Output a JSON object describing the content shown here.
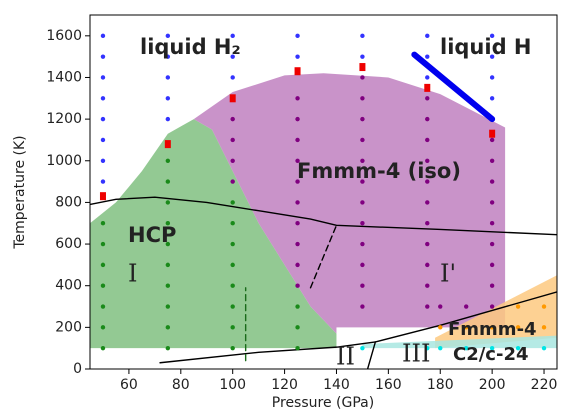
{
  "chart_data": {
    "type": "scatter",
    "xlabel": "Pressure (GPa)",
    "ylabel": "Temperature (K)",
    "xlim": [
      45,
      225
    ],
    "ylim": [
      0,
      1700
    ],
    "xticks": [
      60,
      80,
      100,
      120,
      140,
      160,
      180,
      200,
      220
    ],
    "yticks": [
      0,
      200,
      400,
      600,
      800,
      1000,
      1200,
      1400,
      1600
    ],
    "annotations": [
      "liquid H₂",
      "liquid H",
      "Fmmm-4 (iso)",
      "HCP",
      "I",
      "I'",
      "II",
      "III",
      "Fmmm-4",
      "C2/c-24"
    ],
    "regions": [
      {
        "color": "#80c080",
        "x": [
          45,
          45,
          55,
          65,
          75,
          85,
          92,
          100,
          110,
          120,
          130,
          140,
          140
        ],
        "y": [
          100,
          700,
          800,
          950,
          1130,
          1200,
          1150,
          950,
          700,
          500,
          300,
          170,
          100
        ]
      },
      {
        "color": "#bf80bf",
        "x": [
          85,
          100,
          120,
          135,
          160,
          180,
          205,
          205,
          140,
          140,
          130,
          120,
          110,
          100,
          92
        ],
        "y": [
          1200,
          1330,
          1410,
          1420,
          1400,
          1320,
          1160,
          200,
          200,
          170,
          300,
          500,
          700,
          950,
          1150
        ]
      },
      {
        "color": "#fdc980",
        "x": [
          178,
          225,
          225,
          178
        ],
        "y": [
          150,
          450,
          150,
          100
        ]
      },
      {
        "color": "#a8e6e0",
        "x": [
          150,
          225,
          225,
          150
        ],
        "y": [
          100,
          100,
          160,
          120
        ]
      }
    ],
    "lines": [
      {
        "color": "#000000",
        "x": [
          45,
          55,
          70,
          90,
          110,
          130,
          140,
          180,
          225
        ],
        "y": [
          790,
          815,
          825,
          800,
          760,
          720,
          690,
          670,
          645
        ]
      },
      {
        "color": "#000000",
        "x": [
          72,
          110,
          140,
          155
        ],
        "y": [
          30,
          80,
          105,
          130
        ]
      },
      {
        "color": "#000000",
        "x": [
          152,
          155,
          180,
          225
        ],
        "y": [
          0,
          130,
          210,
          370
        ]
      },
      {
        "color": "#000000",
        "dashed": true,
        "x": [
          130,
          140
        ],
        "y": [
          390,
          690
        ]
      },
      {
        "color": "#1a6b1a",
        "dashed": true,
        "x": [
          105,
          105
        ],
        "y": [
          40,
          390
        ]
      },
      {
        "color": "#0000ee",
        "width": 6,
        "x": [
          170,
          200
        ],
        "y": [
          1510,
          1200
        ]
      }
    ],
    "series": [
      {
        "color": "#3333ff",
        "marker": "circle",
        "x": [
          50,
          50,
          50,
          50,
          50,
          50,
          50,
          50,
          75,
          75,
          75,
          75,
          75,
          100,
          100,
          100,
          125,
          125,
          150,
          150,
          175,
          175,
          175,
          200,
          200,
          200,
          200
        ],
        "values": [
          900,
          1000,
          1100,
          1200,
          1300,
          1400,
          1500,
          1600,
          1200,
          1300,
          1400,
          1500,
          1600,
          1400,
          1500,
          1600,
          1500,
          1600,
          1500,
          1600,
          1400,
          1500,
          1600,
          1300,
          1400,
          1500,
          1600
        ]
      },
      {
        "color": "#1a8a1a",
        "marker": "circle",
        "x": [
          50,
          50,
          50,
          50,
          50,
          50,
          50,
          75,
          75,
          75,
          75,
          75,
          75,
          75,
          75,
          75,
          75,
          100,
          100,
          100,
          100,
          100,
          100,
          100,
          100,
          125,
          125,
          125
        ],
        "values": [
          100,
          200,
          300,
          400,
          500,
          600,
          700,
          100,
          200,
          300,
          400,
          500,
          600,
          700,
          800,
          900,
          1000,
          100,
          200,
          300,
          400,
          500,
          600,
          700,
          800,
          100,
          200,
          300
        ]
      },
      {
        "color": "#800080",
        "marker": "circle",
        "x": [
          100,
          100,
          100,
          100,
          125,
          125,
          125,
          125,
          125,
          125,
          125,
          125,
          125,
          125,
          150,
          150,
          150,
          150,
          150,
          150,
          150,
          150,
          150,
          150,
          150,
          150,
          175,
          175,
          175,
          175,
          175,
          175,
          175,
          175,
          175,
          175,
          175,
          200,
          200,
          200,
          200,
          200,
          200,
          200,
          200,
          200,
          180,
          190
        ],
        "values": [
          900,
          1000,
          1100,
          1200,
          400,
          500,
          600,
          700,
          800,
          900,
          1000,
          1100,
          1200,
          1300,
          300,
          400,
          500,
          600,
          700,
          800,
          900,
          1000,
          1100,
          1200,
          1300,
          1400,
          300,
          400,
          500,
          600,
          700,
          800,
          900,
          1000,
          1100,
          1200,
          1300,
          300,
          400,
          500,
          600,
          700,
          800,
          900,
          1000,
          1100,
          300,
          300
        ]
      },
      {
        "color": "#ff9900",
        "marker": "circle",
        "x": [
          180,
          190,
          200,
          210,
          210,
          220,
          220
        ],
        "values": [
          200,
          200,
          200,
          200,
          300,
          200,
          300
        ]
      },
      {
        "color": "#00e5e5",
        "marker": "circle",
        "x": [
          150,
          175,
          180,
          190,
          200,
          210,
          220
        ],
        "values": [
          100,
          100,
          100,
          100,
          100,
          100,
          100
        ]
      },
      {
        "color": "#ee0000",
        "marker": "square",
        "x": [
          50,
          75,
          100,
          125,
          150,
          175,
          200
        ],
        "values": [
          830,
          1080,
          1300,
          1430,
          1450,
          1350,
          1130
        ]
      }
    ]
  }
}
